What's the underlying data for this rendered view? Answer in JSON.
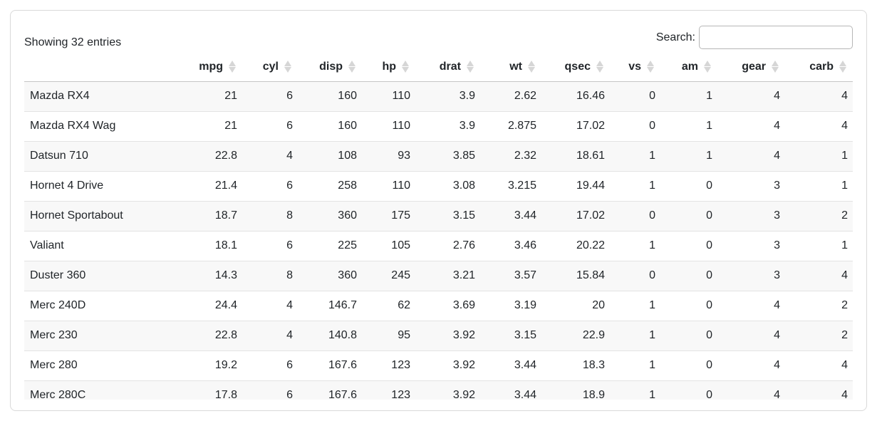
{
  "table": {
    "info": "Showing 32 entries",
    "search": {
      "label": "Search:",
      "value": "",
      "placeholder": ""
    },
    "columns": [
      {
        "key": "rowname",
        "label": "",
        "sortable": false
      },
      {
        "key": "mpg",
        "label": "mpg",
        "sortable": true
      },
      {
        "key": "cyl",
        "label": "cyl",
        "sortable": true
      },
      {
        "key": "disp",
        "label": "disp",
        "sortable": true
      },
      {
        "key": "hp",
        "label": "hp",
        "sortable": true
      },
      {
        "key": "drat",
        "label": "drat",
        "sortable": true
      },
      {
        "key": "wt",
        "label": "wt",
        "sortable": true
      },
      {
        "key": "qsec",
        "label": "qsec",
        "sortable": true
      },
      {
        "key": "vs",
        "label": "vs",
        "sortable": true
      },
      {
        "key": "am",
        "label": "am",
        "sortable": true
      },
      {
        "key": "gear",
        "label": "gear",
        "sortable": true
      },
      {
        "key": "carb",
        "label": "carb",
        "sortable": true
      }
    ],
    "rows": [
      {
        "name": "Mazda RX4",
        "values": [
          "21",
          "6",
          "160",
          "110",
          "3.9",
          "2.62",
          "16.46",
          "0",
          "1",
          "4",
          "4"
        ]
      },
      {
        "name": "Mazda RX4 Wag",
        "values": [
          "21",
          "6",
          "160",
          "110",
          "3.9",
          "2.875",
          "17.02",
          "0",
          "1",
          "4",
          "4"
        ]
      },
      {
        "name": "Datsun 710",
        "values": [
          "22.8",
          "4",
          "108",
          "93",
          "3.85",
          "2.32",
          "18.61",
          "1",
          "1",
          "4",
          "1"
        ]
      },
      {
        "name": "Hornet 4 Drive",
        "values": [
          "21.4",
          "6",
          "258",
          "110",
          "3.08",
          "3.215",
          "19.44",
          "1",
          "0",
          "3",
          "1"
        ]
      },
      {
        "name": "Hornet Sportabout",
        "values": [
          "18.7",
          "8",
          "360",
          "175",
          "3.15",
          "3.44",
          "17.02",
          "0",
          "0",
          "3",
          "2"
        ]
      },
      {
        "name": "Valiant",
        "values": [
          "18.1",
          "6",
          "225",
          "105",
          "2.76",
          "3.46",
          "20.22",
          "1",
          "0",
          "3",
          "1"
        ]
      },
      {
        "name": "Duster 360",
        "values": [
          "14.3",
          "8",
          "360",
          "245",
          "3.21",
          "3.57",
          "15.84",
          "0",
          "0",
          "3",
          "4"
        ]
      },
      {
        "name": "Merc 240D",
        "values": [
          "24.4",
          "4",
          "146.7",
          "62",
          "3.69",
          "3.19",
          "20",
          "1",
          "0",
          "4",
          "2"
        ]
      },
      {
        "name": "Merc 230",
        "values": [
          "22.8",
          "4",
          "140.8",
          "95",
          "3.92",
          "3.15",
          "22.9",
          "1",
          "0",
          "4",
          "2"
        ]
      },
      {
        "name": "Merc 280",
        "values": [
          "19.2",
          "6",
          "167.6",
          "123",
          "3.92",
          "3.44",
          "18.3",
          "1",
          "0",
          "4",
          "4"
        ]
      },
      {
        "name": "Merc 280C",
        "values": [
          "17.8",
          "6",
          "167.6",
          "123",
          "3.92",
          "3.44",
          "18.9",
          "1",
          "0",
          "4",
          "4"
        ]
      }
    ]
  },
  "colors": {
    "text": "#212529",
    "stripe": "#f8f8f8",
    "row_border": "#e3e3e3",
    "header_border": "#c6c6c6",
    "sort_icon": "#d6d6d6",
    "card_border": "#d9d9d9"
  }
}
